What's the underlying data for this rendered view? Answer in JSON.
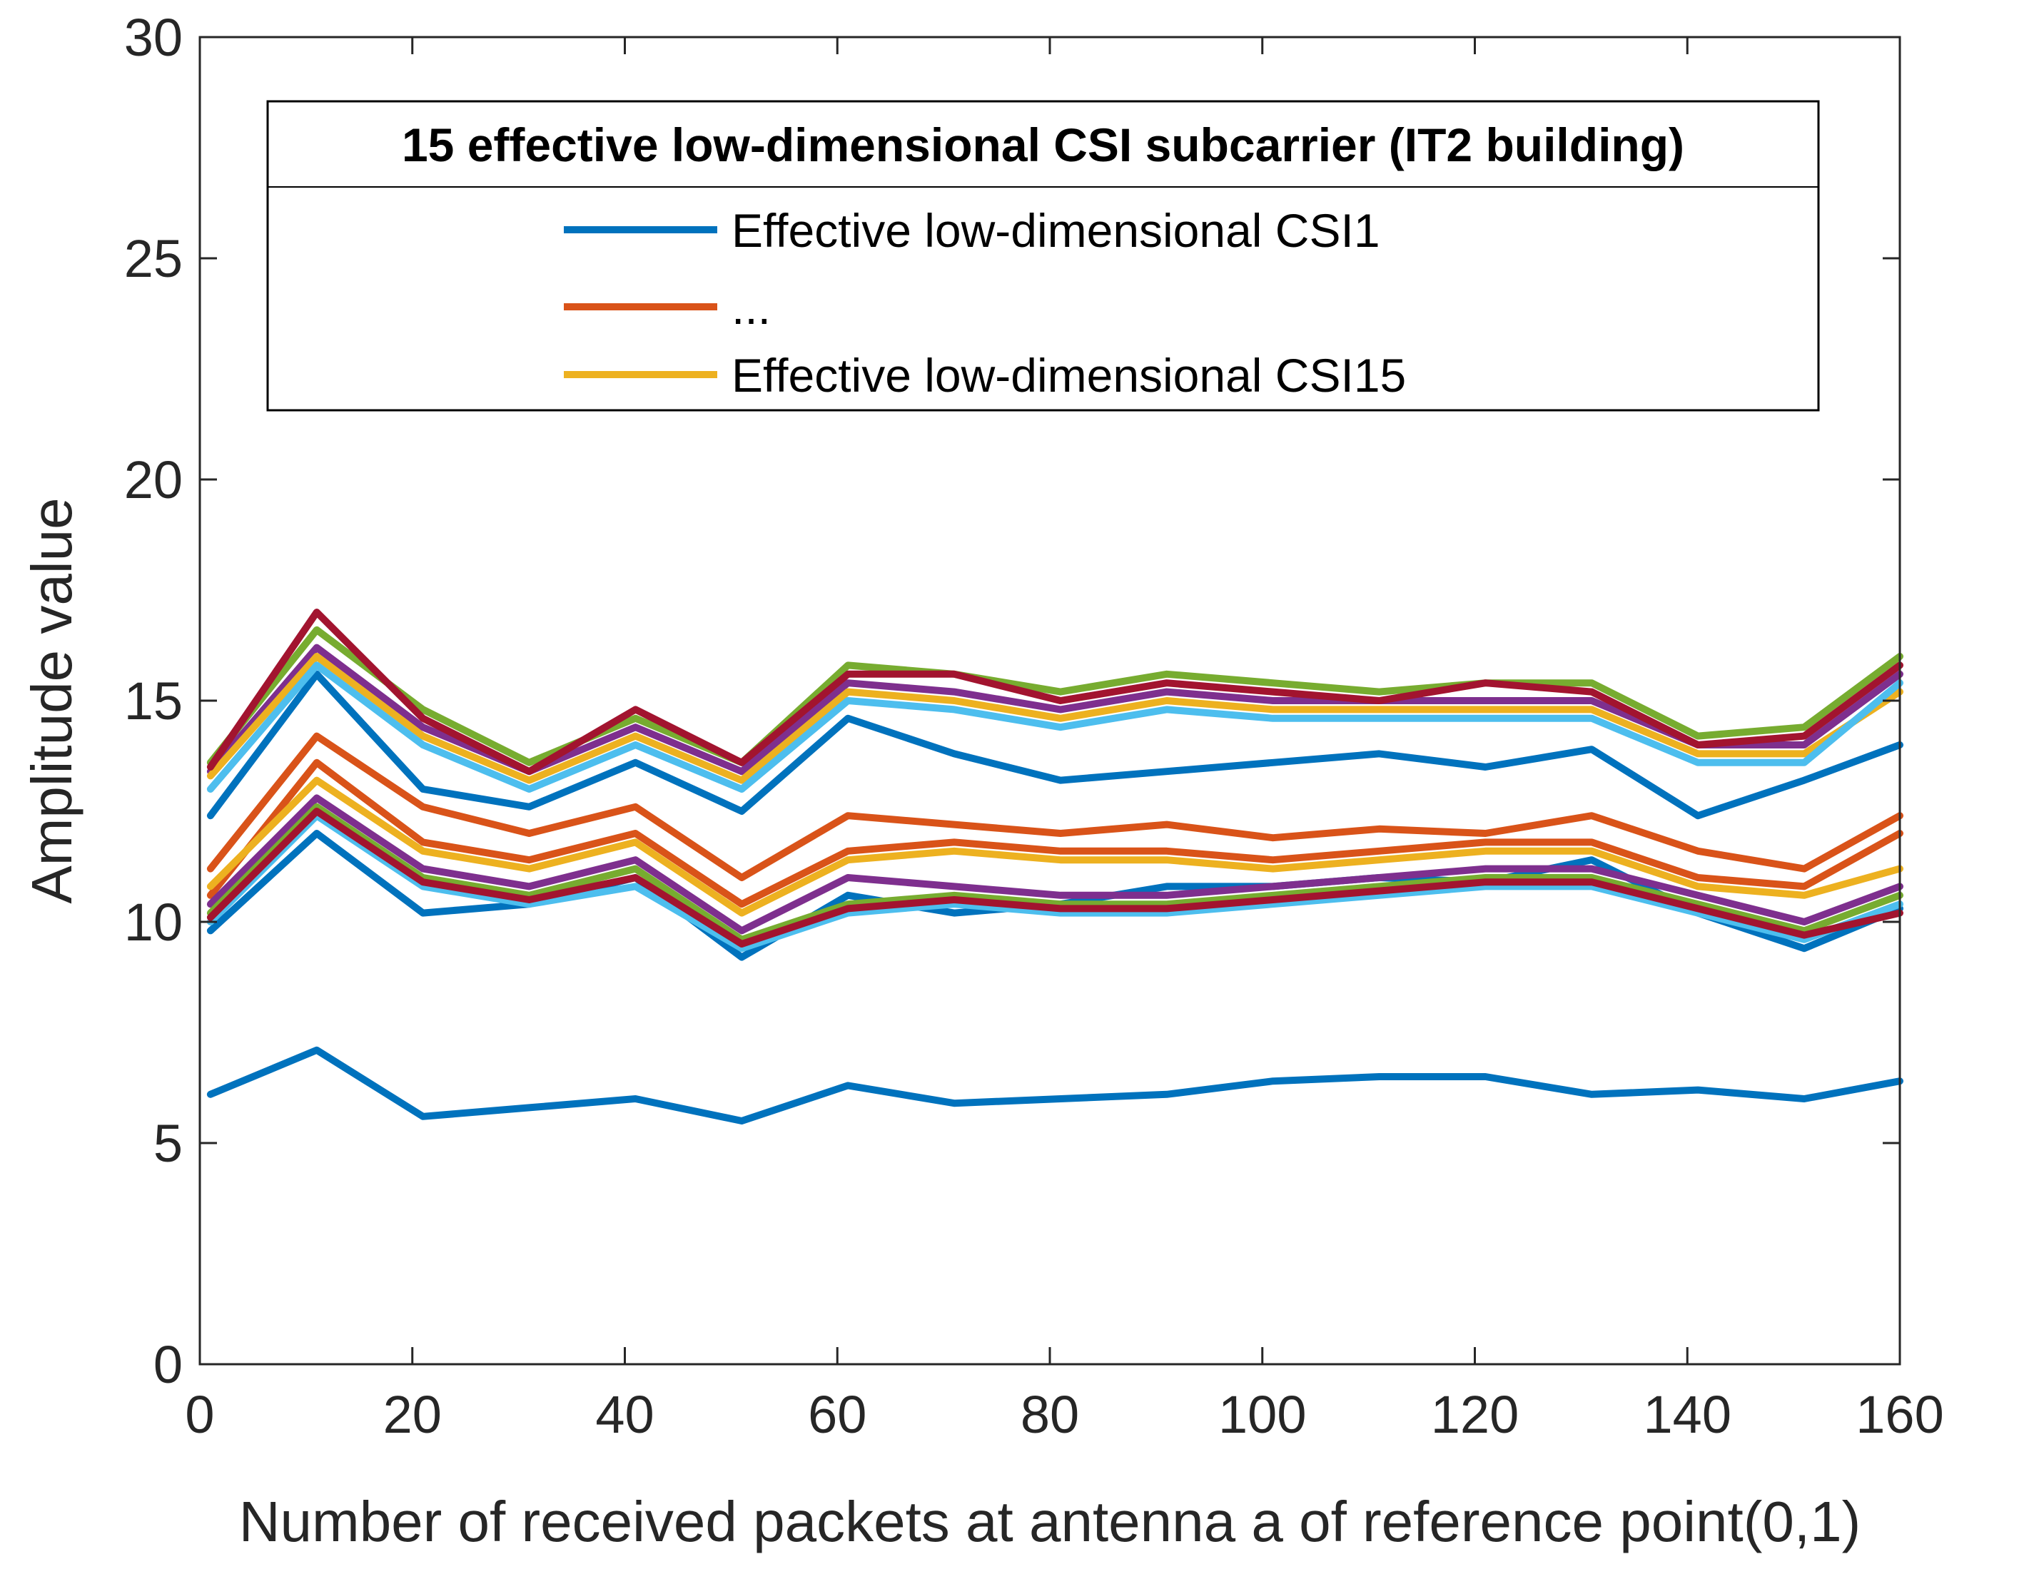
{
  "chart_data": {
    "type": "line",
    "xlabel": "Number of received packets at antenna a of reference point(0,1)",
    "ylabel": "Amplitude value",
    "xlim": [
      0,
      160
    ],
    "ylim": [
      0,
      30
    ],
    "xticks": [
      0,
      20,
      40,
      60,
      80,
      100,
      120,
      140,
      160
    ],
    "yticks": [
      0,
      5,
      10,
      15,
      20,
      25,
      30
    ],
    "grid": false,
    "legend": {
      "title": "15 effective low-dimensional CSI subcarrier (IT2 building)",
      "placement": "top-center",
      "entries": [
        {
          "label": "Effective low-dimensional CSI1",
          "color": "#0072BD"
        },
        {
          "label": "...",
          "color": "#D95319"
        },
        {
          "label": "Effective low-dimensional CSI15",
          "color": "#EDB120"
        }
      ]
    },
    "x": [
      1,
      11,
      21,
      31,
      41,
      51,
      61,
      71,
      81,
      91,
      101,
      111,
      121,
      131,
      141,
      151,
      160
    ],
    "series": [
      {
        "color": "#0072BD",
        "values": [
          6.1,
          7.1,
          5.6,
          5.8,
          6.0,
          5.5,
          6.3,
          5.9,
          6.0,
          6.1,
          6.4,
          6.5,
          6.5,
          6.1,
          6.2,
          6.0,
          6.4
        ]
      },
      {
        "color": "#0072BD",
        "values": [
          12.4,
          15.6,
          13.0,
          12.6,
          13.6,
          12.5,
          14.6,
          13.8,
          13.2,
          13.4,
          13.6,
          13.8,
          13.5,
          13.9,
          12.4,
          13.2,
          14.0
        ]
      },
      {
        "color": "#0072BD",
        "values": [
          9.8,
          12.0,
          10.2,
          10.4,
          11.0,
          9.2,
          10.6,
          10.2,
          10.4,
          10.8,
          10.8,
          11.0,
          10.9,
          11.4,
          10.2,
          9.4,
          10.3
        ]
      },
      {
        "color": "#D95319",
        "values": [
          11.2,
          14.2,
          12.6,
          12.0,
          12.6,
          11.0,
          12.4,
          12.2,
          12.0,
          12.2,
          11.9,
          12.1,
          12.0,
          12.4,
          11.6,
          11.2,
          12.4
        ]
      },
      {
        "color": "#D95319",
        "values": [
          10.6,
          13.6,
          11.8,
          11.4,
          12.0,
          10.4,
          11.6,
          11.8,
          11.6,
          11.6,
          11.4,
          11.6,
          11.8,
          11.8,
          11.0,
          10.8,
          12.0
        ]
      },
      {
        "color": "#EDB120",
        "values": [
          10.8,
          13.2,
          11.6,
          11.2,
          11.8,
          10.2,
          11.4,
          11.6,
          11.4,
          11.4,
          11.2,
          11.4,
          11.6,
          11.6,
          10.8,
          10.6,
          11.2
        ]
      },
      {
        "color": "#7E2F8E",
        "values": [
          10.4,
          12.8,
          11.2,
          10.8,
          11.4,
          9.8,
          11.0,
          10.8,
          10.6,
          10.6,
          10.8,
          11.0,
          11.2,
          11.2,
          10.6,
          10.0,
          10.8
        ]
      },
      {
        "color": "#77AC30",
        "values": [
          10.2,
          12.6,
          11.0,
          10.6,
          11.2,
          9.6,
          10.4,
          10.6,
          10.4,
          10.4,
          10.6,
          10.8,
          11.0,
          11.0,
          10.4,
          9.8,
          10.6
        ]
      },
      {
        "color": "#4DBEEE",
        "values": [
          10.0,
          12.4,
          10.8,
          10.4,
          10.8,
          9.4,
          10.2,
          10.4,
          10.2,
          10.2,
          10.4,
          10.6,
          10.8,
          10.8,
          10.2,
          9.6,
          10.4
        ]
      },
      {
        "color": "#A2142F",
        "values": [
          10.1,
          12.5,
          10.9,
          10.5,
          11.0,
          9.5,
          10.3,
          10.5,
          10.3,
          10.3,
          10.5,
          10.7,
          10.9,
          10.9,
          10.3,
          9.7,
          10.2
        ]
      },
      {
        "color": "#77AC30",
        "values": [
          13.6,
          16.6,
          14.8,
          13.6,
          14.6,
          13.6,
          15.8,
          15.6,
          15.2,
          15.6,
          15.4,
          15.2,
          15.4,
          15.4,
          14.2,
          14.4,
          16.0
        ]
      },
      {
        "color": "#7E2F8E",
        "values": [
          13.4,
          16.2,
          14.4,
          13.4,
          14.4,
          13.4,
          15.4,
          15.2,
          14.8,
          15.2,
          15.0,
          15.0,
          15.0,
          15.0,
          14.0,
          14.0,
          15.6
        ]
      },
      {
        "color": "#EDB120",
        "values": [
          13.3,
          16.0,
          14.2,
          13.2,
          14.2,
          13.2,
          15.2,
          15.0,
          14.6,
          15.0,
          14.8,
          14.8,
          14.8,
          14.8,
          13.8,
          13.8,
          15.2
        ]
      },
      {
        "color": "#4DBEEE",
        "values": [
          13.0,
          15.8,
          14.0,
          13.0,
          14.0,
          13.0,
          15.0,
          14.8,
          14.4,
          14.8,
          14.6,
          14.6,
          14.6,
          14.6,
          13.6,
          13.6,
          15.4
        ]
      },
      {
        "color": "#A2142F",
        "values": [
          13.5,
          17.0,
          14.6,
          13.4,
          14.8,
          13.6,
          15.6,
          15.6,
          15.0,
          15.4,
          15.2,
          15.0,
          15.4,
          15.2,
          14.0,
          14.2,
          15.8
        ]
      }
    ]
  }
}
